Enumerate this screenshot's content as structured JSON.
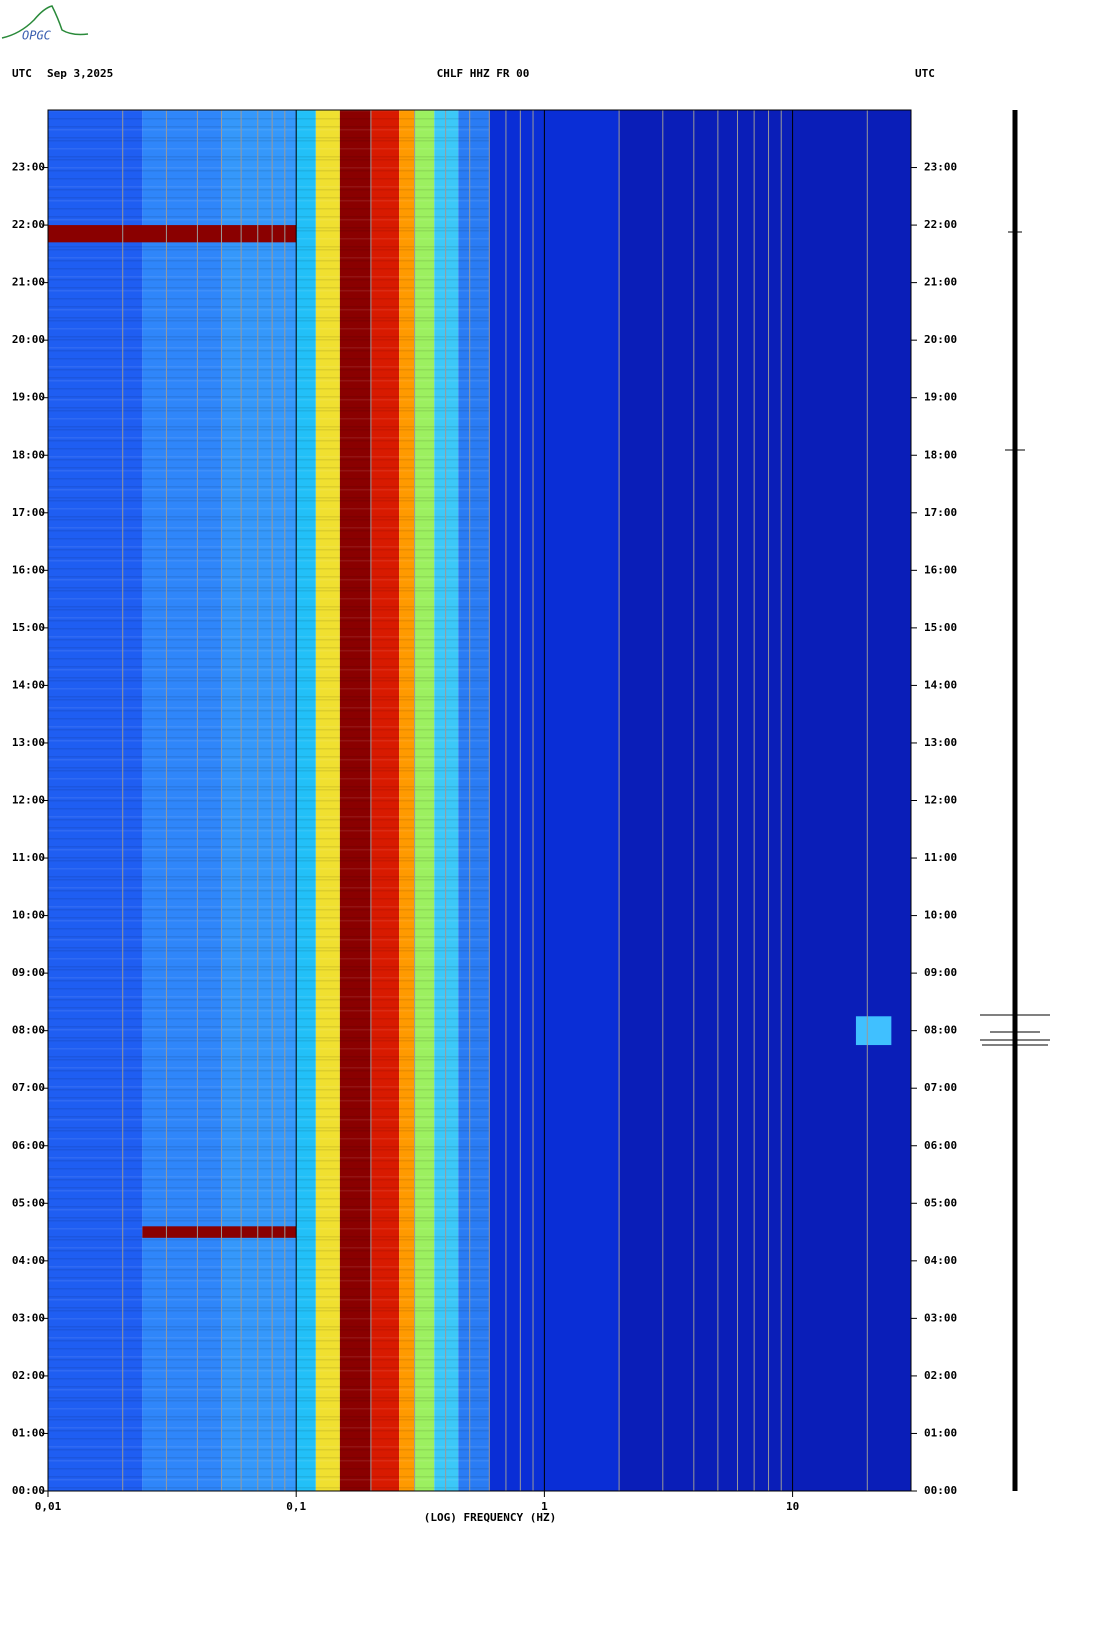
{
  "logo": "OPGC",
  "chart_data": {
    "type": "spectrogram",
    "timezone": "UTC",
    "date": "Sep 3,2025",
    "title": "CHLF HHZ FR 00",
    "x_label": "(LOG) FREQUENCY (HZ)",
    "x_scale": "log",
    "xlim": [
      0.01,
      30
    ],
    "xticks": [
      {
        "value": 0.01,
        "label": "0,01"
      },
      {
        "value": 0.1,
        "label": "0,1"
      },
      1,
      10
    ],
    "xminorticks": [
      0.02,
      0.03,
      0.04,
      0.05,
      0.06,
      0.07,
      0.08,
      0.09,
      0.2,
      0.3,
      0.4,
      0.5,
      0.6,
      0.7,
      0.8,
      0.9,
      2,
      3,
      4,
      5,
      6,
      7,
      8,
      9,
      20
    ],
    "ylim": [
      0,
      24
    ],
    "yticks": [
      {
        "value": 0,
        "label": "00:00"
      },
      {
        "value": 1,
        "label": "01:00"
      },
      {
        "value": 2,
        "label": "02:00"
      },
      {
        "value": 3,
        "label": "03:00"
      },
      {
        "value": 4,
        "label": "04:00"
      },
      {
        "value": 5,
        "label": "05:00"
      },
      {
        "value": 6,
        "label": "06:00"
      },
      {
        "value": 7,
        "label": "07:00"
      },
      {
        "value": 8,
        "label": "08:00"
      },
      {
        "value": 9,
        "label": "09:00"
      },
      {
        "value": 10,
        "label": "10:00"
      },
      {
        "value": 11,
        "label": "11:00"
      },
      {
        "value": 12,
        "label": "12:00"
      },
      {
        "value": 13,
        "label": "13:00"
      },
      {
        "value": 14,
        "label": "14:00"
      },
      {
        "value": 15,
        "label": "15:00"
      },
      {
        "value": 16,
        "label": "16:00"
      },
      {
        "value": 17,
        "label": "17:00"
      },
      {
        "value": 18,
        "label": "18:00"
      },
      {
        "value": 19,
        "label": "19:00"
      },
      {
        "value": 20,
        "label": "20:00"
      },
      {
        "value": 21,
        "label": "21:00"
      },
      {
        "value": 22,
        "label": "22:00"
      },
      {
        "value": 23,
        "label": "23:00"
      }
    ],
    "bands": [
      {
        "from": 0.01,
        "to": 0.024,
        "color": "#1f5ef2"
      },
      {
        "from": 0.024,
        "to": 0.05,
        "color": "#2f86fa"
      },
      {
        "from": 0.05,
        "to": 0.1,
        "color": "#3598fb"
      },
      {
        "from": 0.1,
        "to": 0.12,
        "color": "#22c0f8"
      },
      {
        "from": 0.12,
        "to": 0.15,
        "color": "#f0e030"
      },
      {
        "from": 0.15,
        "to": 0.2,
        "color": "#8a0000"
      },
      {
        "from": 0.2,
        "to": 0.26,
        "color": "#d81a00"
      },
      {
        "from": 0.26,
        "to": 0.3,
        "color": "#ff9a00"
      },
      {
        "from": 0.3,
        "to": 0.36,
        "color": "#9cf060"
      },
      {
        "from": 0.36,
        "to": 0.45,
        "color": "#3cc8f8"
      },
      {
        "from": 0.45,
        "to": 0.6,
        "color": "#2a7cf4"
      },
      {
        "from": 0.6,
        "to": 2,
        "color": "#0a2ed6"
      },
      {
        "from": 2,
        "to": 30,
        "color": "#0a1eb8"
      }
    ],
    "events": [
      {
        "start": 21.7,
        "end": 22.0,
        "from": 0.01,
        "to": 0.1,
        "color": "#8a0000"
      },
      {
        "start": 4.4,
        "end": 4.6,
        "from": 0.024,
        "to": 0.1,
        "color": "#8a0000"
      },
      {
        "start": 7.75,
        "end": 8.25,
        "from": 18,
        "to": 25,
        "color": "#40c0ff"
      }
    ]
  }
}
